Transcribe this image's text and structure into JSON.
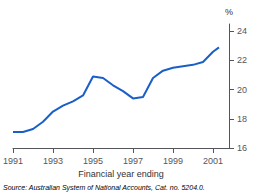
{
  "chart_data": {
    "type": "line",
    "xlabel": "Financial year ending",
    "ylabel": "%",
    "annotations": [
      "Source: Australian System of National Accounts, Cat. no. 5204.0."
    ],
    "x": [
      1991,
      1991.5,
      1992,
      1992.5,
      1993,
      1993.5,
      1994,
      1994.5,
      1995,
      1995.5,
      1996,
      1996.5,
      1997,
      1997.5,
      1998,
      1998.5,
      1999,
      1999.5,
      2000,
      2000.5,
      2001,
      2001.3
    ],
    "values": [
      17.1,
      17.1,
      17.3,
      17.8,
      18.5,
      18.9,
      19.2,
      19.6,
      20.9,
      20.8,
      20.3,
      19.9,
      19.4,
      19.5,
      20.8,
      21.3,
      21.5,
      21.6,
      21.7,
      21.9,
      22.6,
      22.9
    ],
    "color": "#1a5fc8",
    "xlim": [
      1991,
      2001.8
    ],
    "ylim": [
      16,
      24.5
    ],
    "xticks": [
      1991,
      1993,
      1995,
      1997,
      1999,
      2001
    ],
    "yticks": [
      16,
      18,
      20,
      22,
      24
    ],
    "grid": false
  }
}
